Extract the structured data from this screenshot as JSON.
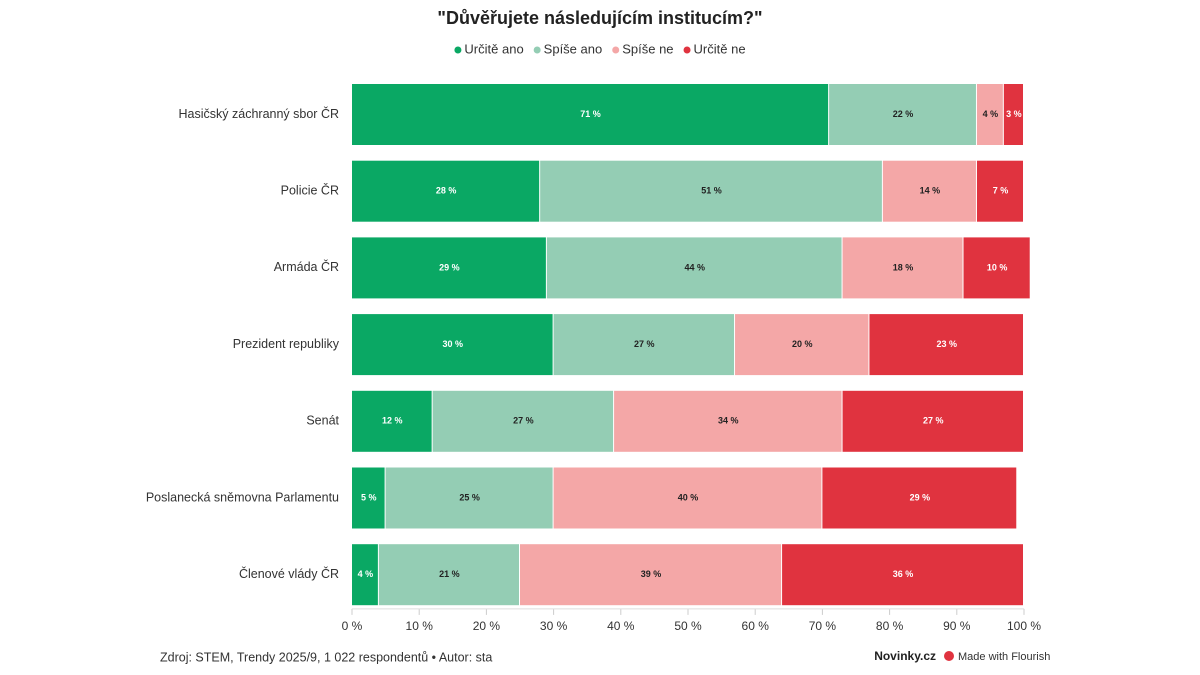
{
  "chart_data": {
    "type": "stacked-bar-horizontal",
    "title": "\"Důvěřujete následujícím institucím?\"",
    "categories": [
      "Hasičský záchranný sbor ČR",
      "Policie ČR",
      "Armáda ČR",
      "Prezident republiky",
      "Senát",
      "Poslanecká sněmovna Parlamentu",
      "Členové vlády ČR"
    ],
    "series": [
      {
        "name": "Určitě ano",
        "color": "#0aa864",
        "values": [
          71,
          28,
          29,
          30,
          12,
          5,
          4
        ],
        "value_labels": [
          "71 %",
          "28 %",
          "29 %",
          "30 %",
          "12 %",
          "5 %",
          "4 %"
        ]
      },
      {
        "name": "Spíše ano",
        "color": "#94cdb4",
        "values": [
          22,
          51,
          44,
          27,
          27,
          25,
          21
        ],
        "value_labels": [
          "22 %",
          "51 %",
          "44 %",
          "27 %",
          "27 %",
          "25 %",
          "21 %"
        ]
      },
      {
        "name": "Spíše ne",
        "color": "#f4a7a7",
        "values": [
          4,
          14,
          18,
          20,
          34,
          40,
          39
        ],
        "value_labels": [
          "4 %",
          "14 %",
          "18 %",
          "20 %",
          "34 %",
          "40 %",
          "39 %"
        ]
      },
      {
        "name": "Určitě ne",
        "color": "#e0333f",
        "values": [
          3,
          7,
          10,
          23,
          27,
          29,
          36
        ],
        "value_labels": [
          "3 %",
          "7 %",
          "10 %",
          "23 %",
          "27 %",
          "29 %",
          "36 %"
        ]
      }
    ],
    "xlim": [
      0,
      100
    ],
    "xticks": [
      {
        "value": 0,
        "label": "0 %"
      },
      {
        "value": 10,
        "label": "10 %"
      },
      {
        "value": 20,
        "label": "20 %"
      },
      {
        "value": 30,
        "label": "30 %"
      },
      {
        "value": 40,
        "label": "40 %"
      },
      {
        "value": 50,
        "label": "50 %"
      },
      {
        "value": 60,
        "label": "60 %"
      },
      {
        "value": 70,
        "label": "70 %"
      },
      {
        "value": 80,
        "label": "80 %"
      },
      {
        "value": 90,
        "label": "90 %"
      },
      {
        "value": 100,
        "label": "100 %"
      }
    ],
    "source": "Zdroj: STEM, Trendy 2025/9, 1 022 respondentů • Autor: sta",
    "brand": "Novinky.cz",
    "credit": "Made with Flourish"
  }
}
